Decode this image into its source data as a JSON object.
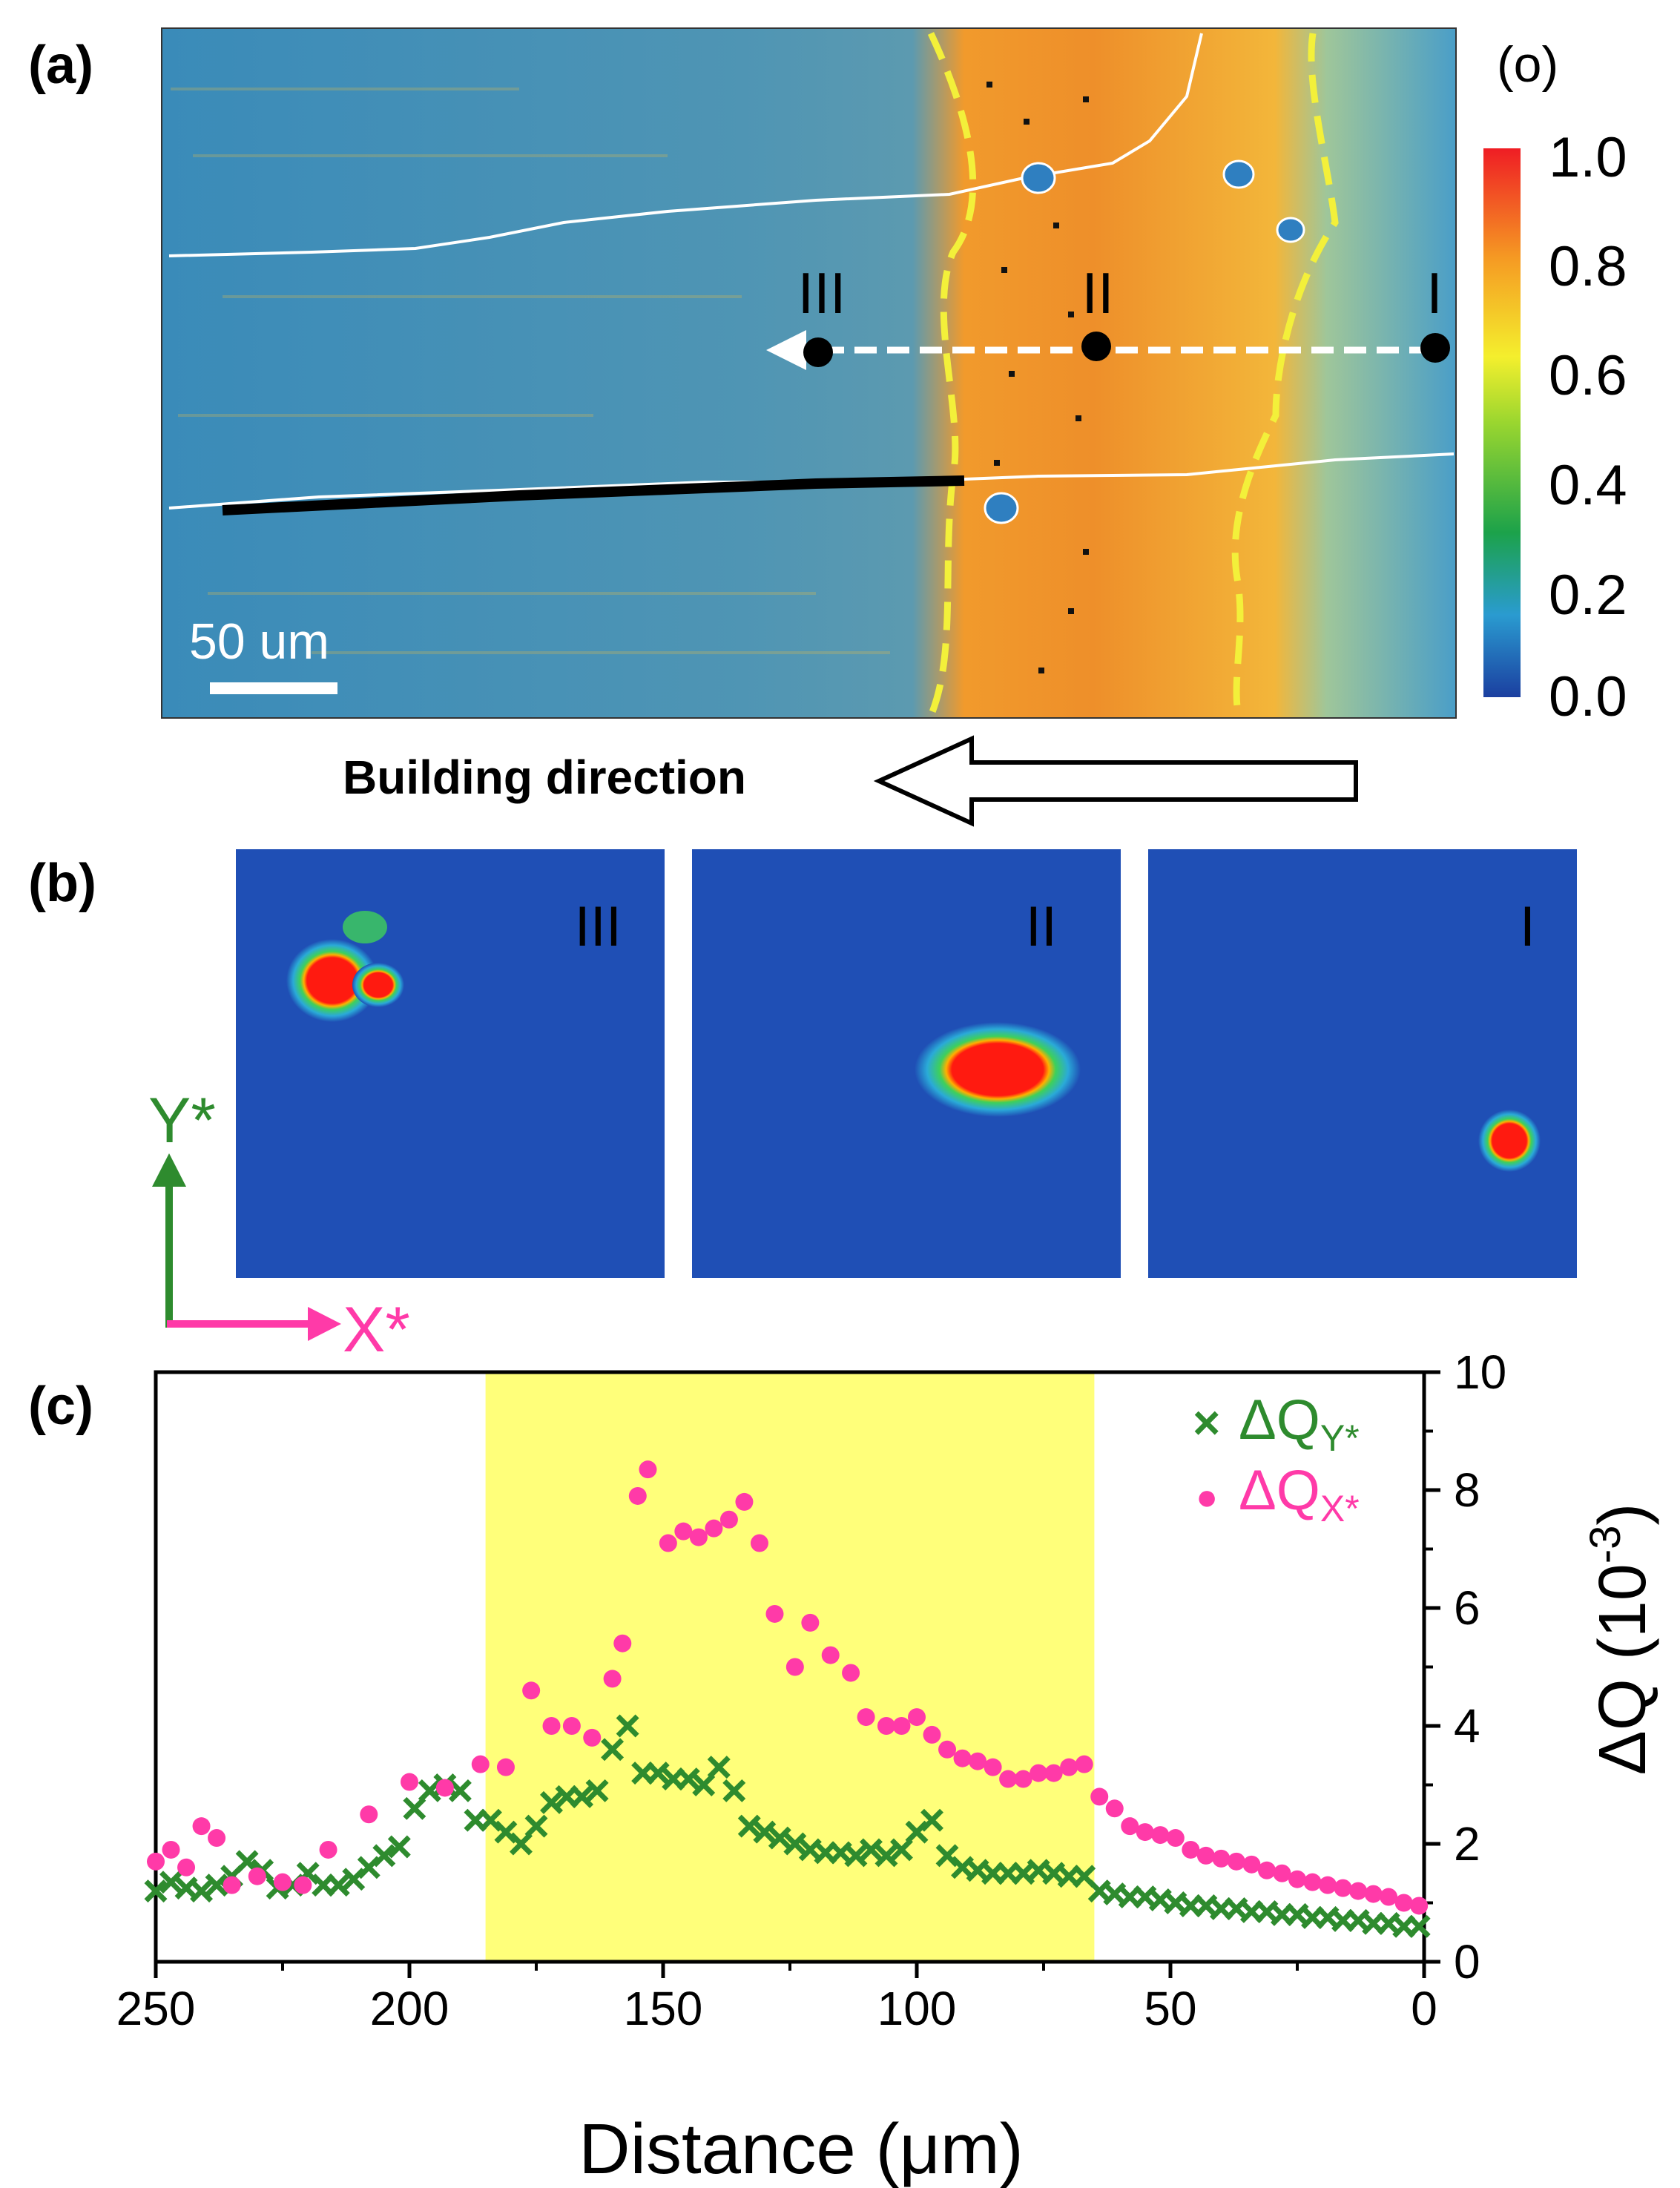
{
  "panel_a": {
    "label": "(a)",
    "unit_label": "(o)",
    "colorbar_ticks": [
      "1.0",
      "0.8",
      "0.6",
      "0.4",
      "0.2",
      "0.0"
    ],
    "scale_bar": "50 um",
    "points": [
      "III",
      "II",
      "I"
    ],
    "building_direction": "Building direction",
    "colors": {
      "background": "#2f86b8",
      "melt_pool": "#f0a030",
      "boundary_dashed": "#f3f03a"
    }
  },
  "panel_b": {
    "label": "(b)",
    "images": [
      "III",
      "II",
      "I"
    ],
    "axis_y": "Y*",
    "axis_x": "X*",
    "colors": {
      "axis_y": "#2e8b2e",
      "axis_x": "#ff3aa8",
      "background": "#1f4fb5"
    }
  },
  "chart_data": {
    "type": "scatter",
    "label": "(c)",
    "xlabel": "Distance (μm)",
    "ylabel": "ΔQ (10",
    "ylabel_sup": "-3",
    "ylabel_close": ")",
    "xlim": [
      250,
      0
    ],
    "ylim": [
      0,
      10
    ],
    "xticks": [
      "250",
      "200",
      "150",
      "100",
      "50",
      "0"
    ],
    "yticks": [
      "0",
      "2",
      "4",
      "6",
      "8",
      "10"
    ],
    "highlight_range": [
      185,
      65
    ],
    "highlight_color": "#ffff7a",
    "legend": [
      {
        "symbol": "×",
        "name": "ΔQ",
        "sub": "Y*",
        "color": "#2e8b2e"
      },
      {
        "symbol": "●",
        "name": "ΔQ",
        "sub": "X*",
        "color": "#ff3aa8"
      }
    ],
    "series": [
      {
        "name": "ΔQY*",
        "marker": "x",
        "color": "#2e8b2e",
        "x": [
          250,
          247,
          244,
          241,
          238,
          235,
          232,
          229,
          226,
          223,
          220,
          217,
          214,
          211,
          208,
          205,
          202,
          199,
          196,
          193,
          190,
          187,
          184,
          181,
          178,
          175,
          172,
          169,
          166,
          163,
          160,
          157,
          154,
          151,
          148,
          145,
          142,
          139,
          136,
          133,
          130,
          127,
          124,
          121,
          118,
          115,
          112,
          109,
          106,
          103,
          100,
          97,
          94,
          91,
          88,
          85,
          82,
          79,
          76,
          73,
          70,
          67,
          64,
          61,
          58,
          55,
          52,
          49,
          46,
          43,
          40,
          37,
          34,
          31,
          28,
          25,
          22,
          19,
          16,
          13,
          10,
          7,
          4,
          1
        ],
        "values": [
          1.2,
          1.35,
          1.25,
          1.2,
          1.3,
          1.45,
          1.7,
          1.55,
          1.25,
          1.3,
          1.5,
          1.3,
          1.3,
          1.4,
          1.6,
          1.8,
          1.95,
          2.6,
          2.9,
          3.0,
          2.9,
          2.4,
          2.4,
          2.2,
          2.0,
          2.3,
          2.7,
          2.8,
          2.8,
          2.9,
          3.6,
          4.0,
          3.2,
          3.2,
          3.1,
          3.1,
          3.0,
          3.3,
          2.9,
          2.3,
          2.2,
          2.1,
          2.0,
          1.9,
          1.85,
          1.85,
          1.8,
          1.9,
          1.8,
          1.9,
          2.2,
          2.4,
          1.8,
          1.6,
          1.55,
          1.5,
          1.5,
          1.5,
          1.55,
          1.5,
          1.45,
          1.45,
          1.2,
          1.15,
          1.1,
          1.1,
          1.05,
          1.0,
          0.95,
          0.95,
          0.9,
          0.9,
          0.85,
          0.85,
          0.8,
          0.8,
          0.75,
          0.75,
          0.7,
          0.7,
          0.65,
          0.65,
          0.6,
          0.6
        ]
      },
      {
        "name": "ΔQX*",
        "marker": "dot",
        "color": "#ff3aa8",
        "x": [
          250,
          247,
          244,
          241,
          238,
          235,
          230,
          225,
          221,
          216,
          208,
          200,
          193,
          186,
          181,
          176,
          172,
          168,
          164,
          160,
          158,
          155,
          153,
          149,
          146,
          143,
          140,
          137,
          134,
          131,
          128,
          124,
          121,
          117,
          113,
          110,
          106,
          103,
          100,
          97,
          94,
          91,
          88,
          85,
          82,
          79,
          76,
          73,
          70,
          67,
          64,
          61,
          58,
          55,
          52,
          49,
          46,
          43,
          40,
          37,
          34,
          31,
          28,
          25,
          22,
          19,
          16,
          13,
          10,
          7,
          4,
          1
        ],
        "values": [
          1.7,
          1.9,
          1.6,
          2.3,
          2.1,
          1.3,
          1.45,
          1.35,
          1.3,
          1.9,
          2.5,
          3.05,
          2.95,
          3.35,
          3.3,
          4.6,
          4.0,
          4.0,
          3.8,
          4.8,
          5.4,
          7.9,
          8.35,
          7.1,
          7.3,
          7.2,
          7.35,
          7.5,
          7.8,
          7.1,
          5.9,
          5.0,
          5.75,
          5.2,
          4.9,
          4.15,
          4.0,
          4.0,
          4.15,
          3.85,
          3.6,
          3.45,
          3.4,
          3.3,
          3.1,
          3.1,
          3.2,
          3.2,
          3.3,
          3.35,
          2.8,
          2.6,
          2.3,
          2.2,
          2.15,
          2.1,
          1.9,
          1.8,
          1.75,
          1.7,
          1.65,
          1.55,
          1.5,
          1.4,
          1.35,
          1.3,
          1.25,
          1.2,
          1.15,
          1.1,
          1.0,
          0.95
        ]
      }
    ]
  }
}
